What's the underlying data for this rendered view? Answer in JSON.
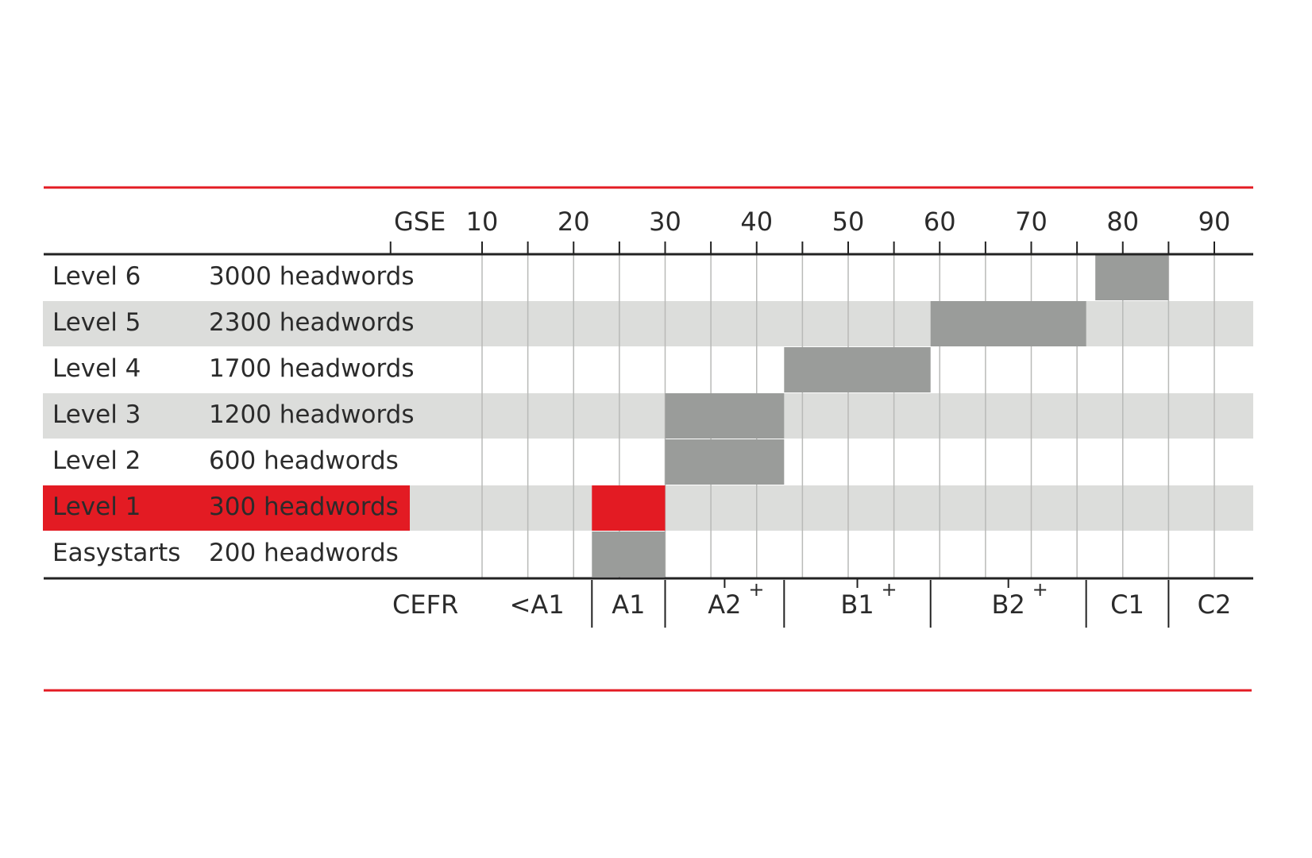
{
  "chart_data": {
    "type": "bar",
    "gse_axis": {
      "title": "GSE",
      "ticks": [
        10,
        20,
        30,
        40,
        50,
        60,
        70,
        80,
        90
      ],
      "range": [
        0,
        95
      ]
    },
    "cefr_axis": {
      "title": "CEFR",
      "bands": [
        {
          "label": "<A1",
          "plus": false,
          "from": 10,
          "to": 22
        },
        {
          "label": "A1",
          "plus": false,
          "from": 22,
          "to": 30
        },
        {
          "label": "A2",
          "plus": true,
          "from": 30,
          "to": 43
        },
        {
          "label": "B1",
          "plus": true,
          "from": 43,
          "to": 59
        },
        {
          "label": "B2",
          "plus": true,
          "from": 59,
          "to": 76
        },
        {
          "label": "C1",
          "plus": false,
          "from": 76,
          "to": 85
        },
        {
          "label": "C2",
          "plus": false,
          "from": 85,
          "to": 95
        }
      ]
    },
    "rows": [
      {
        "level": "Level 6",
        "headwords": "3000 headwords",
        "gse_from": 77,
        "gse_to": 85,
        "shaded": false,
        "highlight": false
      },
      {
        "level": "Level 5",
        "headwords": "2300 headwords",
        "gse_from": 59,
        "gse_to": 76,
        "shaded": true,
        "highlight": false
      },
      {
        "level": "Level 4",
        "headwords": "1700 headwords",
        "gse_from": 43,
        "gse_to": 59,
        "shaded": false,
        "highlight": false
      },
      {
        "level": "Level 3",
        "headwords": "1200 headwords",
        "gse_from": 30,
        "gse_to": 43,
        "shaded": true,
        "highlight": false
      },
      {
        "level": "Level 2",
        "headwords": "600 headwords",
        "gse_from": 30,
        "gse_to": 43,
        "shaded": false,
        "highlight": false
      },
      {
        "level": "Level 1",
        "headwords": "300 headwords",
        "gse_from": 22,
        "gse_to": 30,
        "shaded": true,
        "highlight": true
      },
      {
        "level": "Easystarts",
        "headwords": "200 headwords",
        "gse_from": 22,
        "gse_to": 30,
        "shaded": false,
        "highlight": false
      }
    ],
    "colors": {
      "accent": "#e31b23",
      "bar": "#9a9c9a",
      "band": "#dcdddb",
      "grid": "#b9bab8",
      "axis": "#222222",
      "text": "#2b2b2b"
    }
  }
}
